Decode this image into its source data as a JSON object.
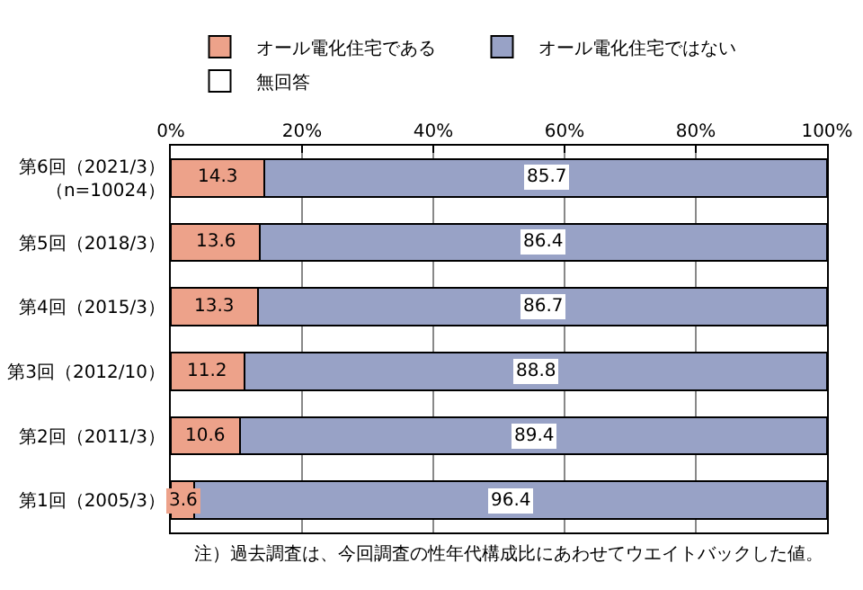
{
  "chart_data": {
    "type": "bar",
    "orientation": "horizontal",
    "stacked": true,
    "categories": [
      "第6回（2021/3）（n=10024）",
      "第5回（2018/3）",
      "第4回（2015/3）",
      "第3回（2012/10）",
      "第2回（2011/3）",
      "第1回（2005/3）"
    ],
    "series": [
      {
        "name": "オール電化住宅である",
        "color": "#eda28a",
        "values": [
          14.3,
          13.6,
          13.3,
          11.2,
          10.6,
          3.6
        ],
        "value_labels": [
          "14.3",
          "13.6",
          "13.3",
          "11.2",
          "10.6",
          "3.6"
        ]
      },
      {
        "name": "オール電化住宅ではない",
        "color": "#98a2c6",
        "values": [
          85.7,
          86.4,
          86.7,
          88.8,
          89.4,
          96.4
        ],
        "value_labels": [
          "85.7",
          "86.4",
          "86.7",
          "88.8",
          "89.4",
          "96.4"
        ]
      },
      {
        "name": "無回答",
        "color": "#ffffff",
        "values": [
          null,
          null,
          null,
          null,
          null,
          null
        ]
      }
    ],
    "xlim": [
      0,
      100
    ],
    "xticks": [
      {
        "value": 0,
        "label": "0%"
      },
      {
        "value": 20,
        "label": "20%"
      },
      {
        "value": 40,
        "label": "40%"
      },
      {
        "value": 60,
        "label": "60%"
      },
      {
        "value": 80,
        "label": "80%"
      },
      {
        "value": 100,
        "label": "100%"
      }
    ],
    "grid": "x",
    "legend": "top",
    "annotations": [
      "注）過去調査は、今回調査の性年代構成比にあわせてウエイトバックした値。"
    ]
  }
}
